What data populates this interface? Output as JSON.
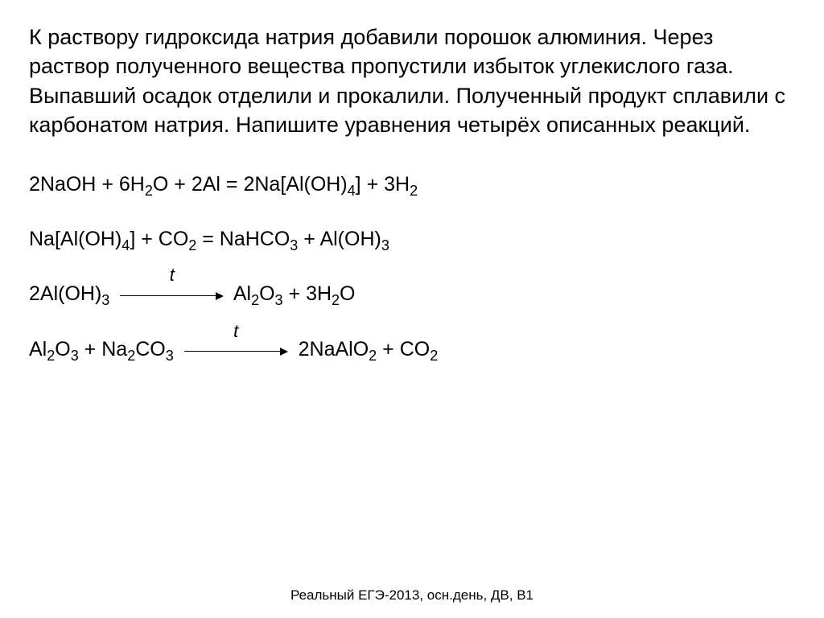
{
  "text": {
    "problem": "К раствору гидроксида натрия добавили порошок алюминия. Через раствор полученного вещества пропустили избыток углекислого газа. Выпавший осадок отделили и прокалили. Полученный продукт сплавили с карбонатом натрия.\nНапишите уравнения четырёх описанных реакций.",
    "footer": "Реальный ЕГЭ-2013, осн.день, ДВ, В1"
  },
  "equations": [
    {
      "lhs": [
        {
          "coef": "2",
          "formula": [
            {
              "t": "NaOH"
            }
          ]
        },
        {
          "coef": "6",
          "formula": [
            {
              "t": "H"
            },
            {
              "s": "2"
            },
            {
              "t": "O"
            }
          ]
        },
        {
          "coef": "2",
          "formula": [
            {
              "t": "Al"
            }
          ]
        }
      ],
      "arrow": {
        "type": "equals"
      },
      "rhs": [
        {
          "coef": "2",
          "formula": [
            {
              "t": "Na[Al(OH)"
            },
            {
              "s": "4"
            },
            {
              "t": "]"
            }
          ]
        },
        {
          "coef": "3",
          "formula": [
            {
              "t": "H"
            },
            {
              "s": "2"
            }
          ]
        }
      ]
    },
    {
      "lhs": [
        {
          "coef": "",
          "formula": [
            {
              "t": "Na[Al(OH)"
            },
            {
              "s": "4"
            },
            {
              "t": "]"
            }
          ]
        },
        {
          "coef": "",
          "formula": [
            {
              "t": "CO"
            },
            {
              "s": "2"
            }
          ]
        }
      ],
      "arrow": {
        "type": "equals"
      },
      "rhs": [
        {
          "coef": "",
          "formula": [
            {
              "t": "NaHCO"
            },
            {
              "s": "3"
            }
          ]
        },
        {
          "coef": "",
          "formula": [
            {
              "t": "Al(OH)"
            },
            {
              "s": "3"
            }
          ]
        }
      ]
    },
    {
      "lhs": [
        {
          "coef": "2",
          "formula": [
            {
              "t": "Al(OH)"
            },
            {
              "s": "3"
            }
          ]
        }
      ],
      "arrow": {
        "type": "arrow",
        "label": "t",
        "width": 120
      },
      "rhs": [
        {
          "coef": "",
          "formula": [
            {
              "t": "Al"
            },
            {
              "s": "2"
            },
            {
              "t": "O"
            },
            {
              "s": "3"
            }
          ]
        },
        {
          "coef": "3",
          "formula": [
            {
              "t": "H"
            },
            {
              "s": "2"
            },
            {
              "t": "O"
            }
          ]
        }
      ]
    },
    {
      "lhs": [
        {
          "coef": "",
          "formula": [
            {
              "t": "Al"
            },
            {
              "s": "2"
            },
            {
              "t": "O"
            },
            {
              "s": "3"
            }
          ]
        },
        {
          "coef": "",
          "formula": [
            {
              "t": "Na"
            },
            {
              "s": "2"
            },
            {
              "t": "CO"
            },
            {
              "s": "3"
            }
          ]
        }
      ],
      "arrow": {
        "type": "arrow",
        "label": "t",
        "width": 120
      },
      "rhs": [
        {
          "coef": "2",
          "formula": [
            {
              "t": "NaAlO"
            },
            {
              "s": "2"
            }
          ]
        },
        {
          "coef": "",
          "formula": [
            {
              "t": "CO"
            },
            {
              "s": "2"
            }
          ]
        }
      ]
    }
  ],
  "style": {
    "background": "#ffffff",
    "text_color": "#000000",
    "problem_fontsize": 27,
    "eq_fontsize": 25,
    "footer_fontsize": 17,
    "arrow_color": "#000000"
  }
}
